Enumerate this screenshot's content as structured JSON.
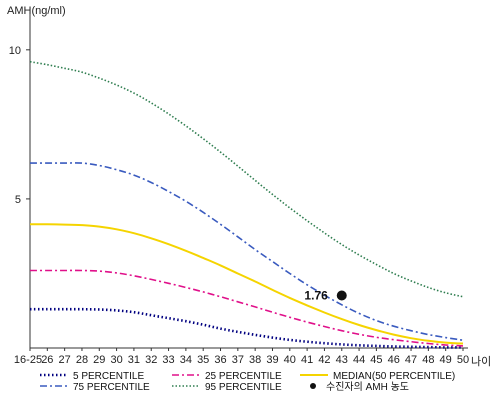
{
  "chart_data": {
    "type": "line",
    "ylabel": "AMH(ng/ml)",
    "xlabel": "나이",
    "ylim": [
      0,
      11
    ],
    "y_ticks": [
      {
        "value": 5,
        "label": "5"
      },
      {
        "value": 10,
        "label": "10"
      }
    ],
    "x_labels": [
      "16-25",
      "26",
      "27",
      "28",
      "29",
      "30",
      "31",
      "32",
      "33",
      "34",
      "35",
      "36",
      "37",
      "38",
      "39",
      "40",
      "41",
      "42",
      "43",
      "44",
      "45",
      "46",
      "47",
      "48",
      "49",
      "50"
    ],
    "series": [
      {
        "name": "5 PERCENTILE",
        "color": "#000080",
        "dash": "1.5,2.5",
        "width": 2.6,
        "values": [
          1.3,
          1.3,
          1.3,
          1.3,
          1.29,
          1.26,
          1.2,
          1.1,
          1.0,
          0.9,
          0.78,
          0.65,
          0.54,
          0.44,
          0.35,
          0.27,
          0.21,
          0.16,
          0.12,
          0.09,
          0.07,
          0.05,
          0.04,
          0.03,
          0.02,
          0.02
        ]
      },
      {
        "name": "25 PERCENTILE",
        "color": "#e0108a",
        "dash": "7,3,2,3",
        "width": 1.6,
        "values": [
          2.6,
          2.6,
          2.6,
          2.6,
          2.58,
          2.52,
          2.42,
          2.3,
          2.17,
          2.03,
          1.88,
          1.72,
          1.55,
          1.38,
          1.2,
          1.03,
          0.87,
          0.72,
          0.58,
          0.46,
          0.36,
          0.28,
          0.21,
          0.15,
          0.1,
          0.07
        ]
      },
      {
        "name": "MEDIAN(50 PERCENTILE)",
        "color": "#f5d400",
        "dash": "",
        "width": 2,
        "values": [
          4.15,
          4.15,
          4.14,
          4.12,
          4.07,
          3.98,
          3.85,
          3.68,
          3.48,
          3.26,
          3.02,
          2.77,
          2.5,
          2.23,
          1.95,
          1.68,
          1.43,
          1.19,
          0.97,
          0.77,
          0.6,
          0.45,
          0.33,
          0.24,
          0.18,
          0.15
        ]
      },
      {
        "name": "75 PERCENTILE",
        "color": "#3a5bbf",
        "dash": "7,3,2,3",
        "width": 1.6,
        "values": [
          6.2,
          6.2,
          6.2,
          6.2,
          6.12,
          5.98,
          5.8,
          5.55,
          5.25,
          4.92,
          4.55,
          4.15,
          3.73,
          3.3,
          2.9,
          2.5,
          2.12,
          1.77,
          1.45,
          1.16,
          0.92,
          0.73,
          0.58,
          0.45,
          0.35,
          0.26
        ]
      },
      {
        "name": "95 PERCENTILE",
        "color": "#2e7d4f",
        "dash": "1.5,2",
        "width": 1.6,
        "values": [
          9.6,
          9.5,
          9.38,
          9.25,
          9.05,
          8.82,
          8.55,
          8.22,
          7.85,
          7.45,
          7.02,
          6.57,
          6.1,
          5.62,
          5.15,
          4.7,
          4.27,
          3.86,
          3.47,
          3.12,
          2.8,
          2.5,
          2.25,
          2.03,
          1.85,
          1.72
        ]
      }
    ],
    "marker": {
      "name": "수진자의 AMH 농도",
      "x": "43",
      "y": 1.76,
      "label": "1.76",
      "color": "#111111"
    },
    "legend_placement": "bottom",
    "legend": [
      {
        "label": "5 PERCENTILE",
        "series": 0
      },
      {
        "label": "25 PERCENTILE",
        "series": 1
      },
      {
        "label": "MEDIAN(50 PERCENTILE)",
        "series": 2
      },
      {
        "label": "75 PERCENTILE",
        "series": 3
      },
      {
        "label": "95 PERCENTILE",
        "series": 4
      },
      {
        "label": "수진자의 AMH 농도",
        "marker": true
      }
    ],
    "grid": false
  }
}
